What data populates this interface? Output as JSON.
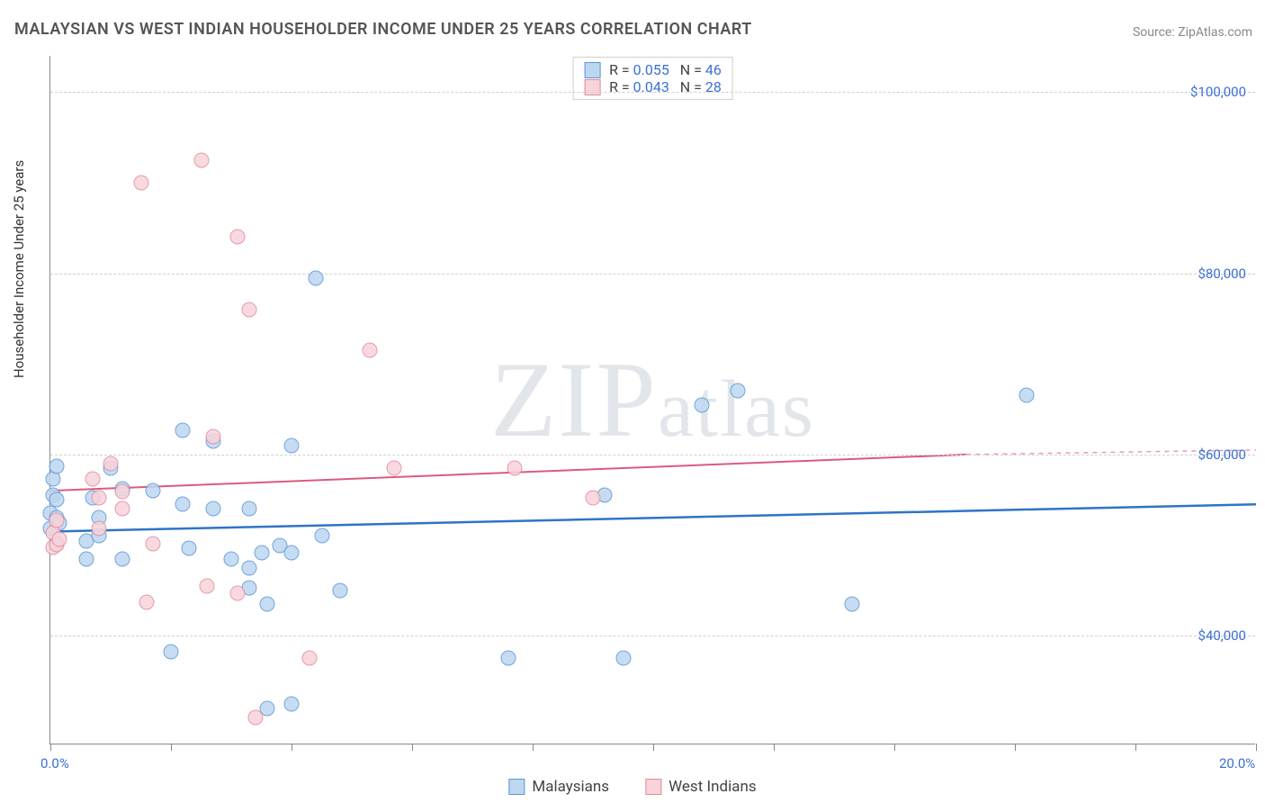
{
  "title": "MALAYSIAN VS WEST INDIAN HOUSEHOLDER INCOME UNDER 25 YEARS CORRELATION CHART",
  "source": "Source: ZipAtlas.com",
  "watermark": "ZIPatlas",
  "chart": {
    "type": "scatter",
    "ylabel": "Householder Income Under 25 years",
    "background_color": "#ffffff",
    "grid_color": "#d0d0d0",
    "axis_color": "#888888",
    "label_color": "#3b6fd6",
    "title_fontsize": 18,
    "label_fontsize": 15,
    "tick_fontsize": 15,
    "marker_radius": 8.5,
    "marker_stroke_width": 1.5,
    "xlim": [
      0,
      20
    ],
    "ylim": [
      28000,
      104000
    ],
    "x_ticks": [
      0,
      2,
      4,
      6,
      8,
      10,
      12,
      14,
      16,
      18,
      20
    ],
    "x_tick_labels": {
      "0": "0.0%",
      "20": "20.0%"
    },
    "y_ticks": [
      40000,
      60000,
      80000,
      100000
    ],
    "y_tick_labels": {
      "40000": "$40,000",
      "60000": "$60,000",
      "80000": "$80,000",
      "100000": "$100,000"
    },
    "series": [
      {
        "name": "Malaysians",
        "fill": "#bdd7f0",
        "stroke": "#5a95d6",
        "reg_fill": "none",
        "reg_stroke": "#2f74c6",
        "reg_stroke_width": 2.5,
        "reg_y_start": 51500,
        "reg_y_end": 54500,
        "reg_x_end": 20,
        "reg_dashed_after": 20,
        "r_value": "0.055",
        "n_value": "46",
        "points": [
          [
            0.0,
            51800
          ],
          [
            0.0,
            53500
          ],
          [
            0.05,
            55500
          ],
          [
            0.05,
            57300
          ],
          [
            0.1,
            50200
          ],
          [
            0.1,
            53000
          ],
          [
            0.1,
            55000
          ],
          [
            0.1,
            58700
          ],
          [
            0.15,
            52400
          ],
          [
            0.6,
            48500
          ],
          [
            0.6,
            50500
          ],
          [
            0.7,
            55200
          ],
          [
            0.8,
            53000
          ],
          [
            0.8,
            51000
          ],
          [
            1.0,
            58500
          ],
          [
            1.2,
            48500
          ],
          [
            1.2,
            56200
          ],
          [
            1.7,
            56000
          ],
          [
            2.0,
            38200
          ],
          [
            2.2,
            54500
          ],
          [
            2.2,
            62700
          ],
          [
            2.3,
            49700
          ],
          [
            2.7,
            54000
          ],
          [
            2.7,
            61500
          ],
          [
            3.0,
            48500
          ],
          [
            3.3,
            54000
          ],
          [
            3.3,
            47500
          ],
          [
            3.3,
            45300
          ],
          [
            3.5,
            49200
          ],
          [
            3.6,
            43500
          ],
          [
            3.6,
            32000
          ],
          [
            3.8,
            50000
          ],
          [
            4.0,
            61000
          ],
          [
            4.0,
            49200
          ],
          [
            4.0,
            32500
          ],
          [
            4.4,
            79500
          ],
          [
            4.5,
            51000
          ],
          [
            4.8,
            45000
          ],
          [
            7.6,
            37500
          ],
          [
            9.2,
            55500
          ],
          [
            9.5,
            37500
          ],
          [
            10.8,
            65500
          ],
          [
            11.4,
            67000
          ],
          [
            13.3,
            43500
          ],
          [
            16.2,
            66500
          ]
        ]
      },
      {
        "name": "West Indians",
        "fill": "#f7d3da",
        "stroke": "#e28a9b",
        "reg_fill": "none",
        "reg_stroke": "#db5b7d",
        "reg_stroke_width": 2,
        "reg_y_start": 56000,
        "reg_y_end": 60000,
        "reg_x_end": 15.2,
        "reg_dashed_after": 15.2,
        "reg_dash_y_end": 60500,
        "r_value": "0.043",
        "n_value": "28",
        "points": [
          [
            0.05,
            49800
          ],
          [
            0.05,
            51300
          ],
          [
            0.1,
            50100
          ],
          [
            0.1,
            52700
          ],
          [
            0.15,
            50700
          ],
          [
            0.7,
            57300
          ],
          [
            0.8,
            51800
          ],
          [
            0.8,
            55200
          ],
          [
            1.0,
            59000
          ],
          [
            1.2,
            55900
          ],
          [
            1.2,
            54000
          ],
          [
            1.5,
            90000
          ],
          [
            1.6,
            43700
          ],
          [
            1.7,
            50200
          ],
          [
            2.5,
            92500
          ],
          [
            2.6,
            45500
          ],
          [
            2.7,
            62000
          ],
          [
            3.1,
            44700
          ],
          [
            3.1,
            84000
          ],
          [
            3.3,
            76000
          ],
          [
            3.4,
            31000
          ],
          [
            4.3,
            37500
          ],
          [
            5.3,
            71500
          ],
          [
            5.7,
            58500
          ],
          [
            7.7,
            58500
          ],
          [
            9.0,
            55200
          ]
        ]
      }
    ]
  },
  "bottom_legend": {
    "items": [
      "Malaysians",
      "West Indians"
    ]
  }
}
